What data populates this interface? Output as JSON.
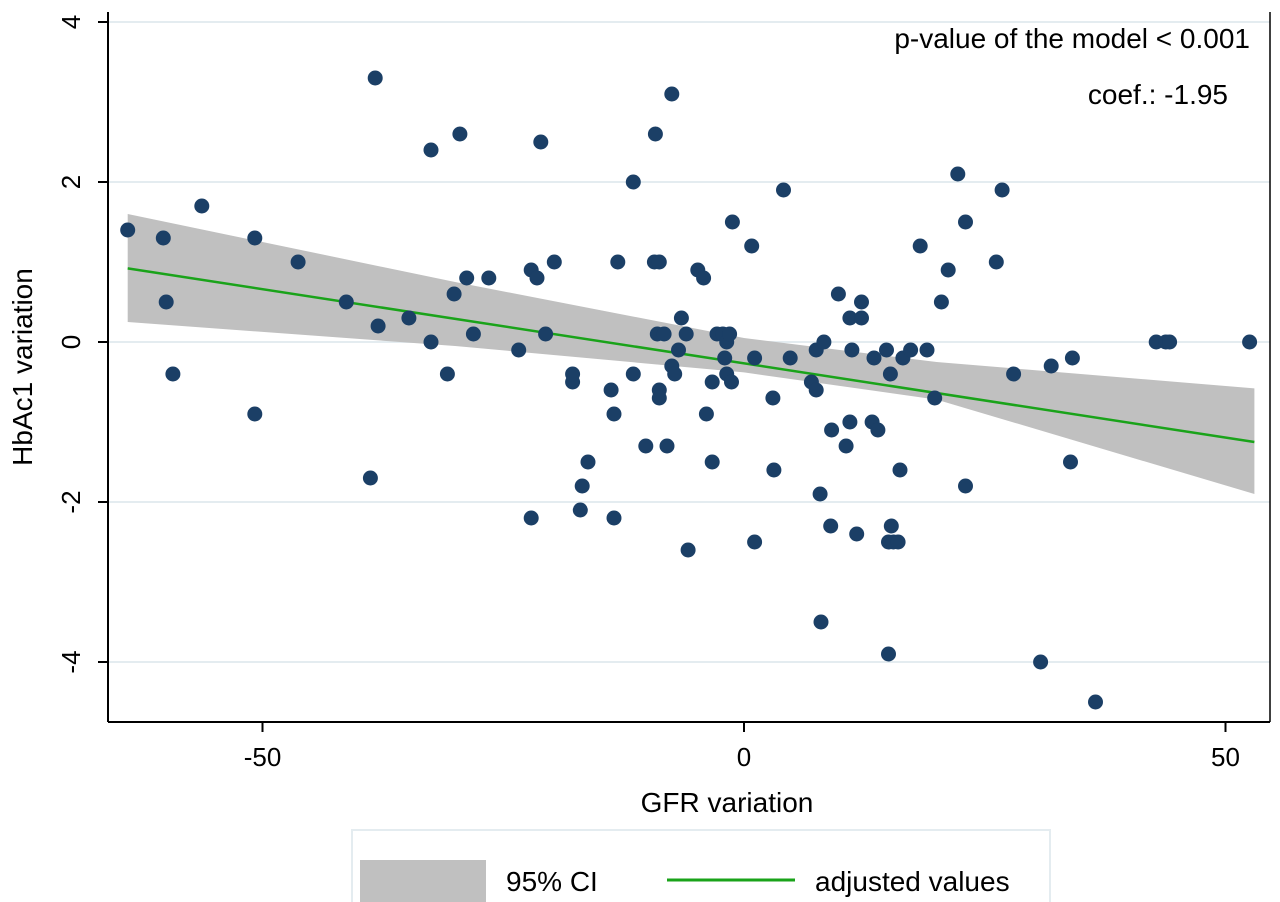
{
  "chart_data": {
    "type": "scatter",
    "title": "",
    "xlabel": "GFR variation",
    "ylabel": "HbAc1 variation",
    "xlim": [
      -66,
      55
    ],
    "ylim": [
      -4.8,
      4.2
    ],
    "x_ticks": [
      -50,
      0,
      50
    ],
    "x_tick_labels": [
      "-50",
      "0",
      "50"
    ],
    "y_ticks": [
      -4,
      -2,
      0,
      2,
      4
    ],
    "y_tick_labels": [
      "-4",
      "-2",
      "0",
      "2",
      "4"
    ],
    "grid": true,
    "annotations": [
      "p-value of the model < 0.001",
      "coef.: -1.95"
    ],
    "legend_position": "bottom",
    "legend": [
      "95% CI",
      "adjusted values"
    ],
    "colors": {
      "points": "#1b3f66",
      "fit": "#1aa31a",
      "ci": "#c0c0c0",
      "grid": "#e4ecf0"
    },
    "fit_line": {
      "x": [
        -64,
        53
      ],
      "y": [
        0.92,
        -1.25
      ]
    },
    "ci_band": {
      "x": [
        -64,
        -30,
        0,
        20,
        53
      ],
      "lower": [
        0.25,
        -0.05,
        -0.38,
        -0.72,
        -1.9
      ],
      "upper": [
        1.6,
        0.75,
        0.05,
        -0.25,
        -0.58
      ]
    },
    "points": [
      {
        "x": -64,
        "y": 1.4
      },
      {
        "x": -60.3,
        "y": 1.3
      },
      {
        "x": -60,
        "y": 0.5
      },
      {
        "x": -59.3,
        "y": -0.4
      },
      {
        "x": -56.3,
        "y": 1.7
      },
      {
        "x": -50.8,
        "y": 1.3
      },
      {
        "x": -50.8,
        "y": -0.9
      },
      {
        "x": -46.3,
        "y": 1.0
      },
      {
        "x": -41.3,
        "y": 0.5
      },
      {
        "x": -38.8,
        "y": -1.7
      },
      {
        "x": -38.3,
        "y": 3.3
      },
      {
        "x": -38,
        "y": 0.2
      },
      {
        "x": -34.8,
        "y": 0.3
      },
      {
        "x": -32.5,
        "y": 2.4
      },
      {
        "x": -32.5,
        "y": 0.0
      },
      {
        "x": -30.8,
        "y": -0.4
      },
      {
        "x": -30.1,
        "y": 0.6
      },
      {
        "x": -29.5,
        "y": 2.6
      },
      {
        "x": -28.8,
        "y": 0.8
      },
      {
        "x": -28.1,
        "y": 0.1
      },
      {
        "x": -26.5,
        "y": 0.8
      },
      {
        "x": -23.4,
        "y": -0.1
      },
      {
        "x": -22.1,
        "y": 0.9
      },
      {
        "x": -22.1,
        "y": -2.2
      },
      {
        "x": -21.5,
        "y": 0.8
      },
      {
        "x": -21.1,
        "y": 2.5
      },
      {
        "x": -20.6,
        "y": 0.1
      },
      {
        "x": -19.7,
        "y": 1.0
      },
      {
        "x": -17.8,
        "y": -0.5
      },
      {
        "x": -17.8,
        "y": -0.4
      },
      {
        "x": -17,
        "y": -2.1
      },
      {
        "x": -16.8,
        "y": -1.8
      },
      {
        "x": -16.2,
        "y": -1.5
      },
      {
        "x": -13.8,
        "y": -0.6
      },
      {
        "x": -13.5,
        "y": -0.9
      },
      {
        "x": -13.5,
        "y": -2.2
      },
      {
        "x": -13.1,
        "y": 1.0
      },
      {
        "x": -11.5,
        "y": 2.0
      },
      {
        "x": -11.5,
        "y": -0.4
      },
      {
        "x": -10.2,
        "y": -1.3
      },
      {
        "x": -9.3,
        "y": 1.0
      },
      {
        "x": -9.2,
        "y": 2.6
      },
      {
        "x": -9.0,
        "y": 0.1
      },
      {
        "x": -8.8,
        "y": 1.0
      },
      {
        "x": -8.8,
        "y": -0.6
      },
      {
        "x": -8.8,
        "y": -0.7
      },
      {
        "x": -8.3,
        "y": 0.1
      },
      {
        "x": -8.0,
        "y": -1.3
      },
      {
        "x": -7.5,
        "y": 3.1
      },
      {
        "x": -7.5,
        "y": -0.3
      },
      {
        "x": -7.2,
        "y": -0.4
      },
      {
        "x": -6.8,
        "y": -0.1
      },
      {
        "x": -6.5,
        "y": 0.3
      },
      {
        "x": -6.0,
        "y": 0.1
      },
      {
        "x": -5.8,
        "y": -2.6
      },
      {
        "x": -4.8,
        "y": 0.9
      },
      {
        "x": -4.2,
        "y": 0.8
      },
      {
        "x": -3.9,
        "y": -0.9
      },
      {
        "x": -3.3,
        "y": -1.5
      },
      {
        "x": -3.3,
        "y": -0.5
      },
      {
        "x": -2.8,
        "y": 0.1
      },
      {
        "x": -2.2,
        "y": 0.1
      },
      {
        "x": -2.0,
        "y": -0.2
      },
      {
        "x": -1.8,
        "y": 0.0
      },
      {
        "x": -1.8,
        "y": -0.4
      },
      {
        "x": -1.5,
        "y": 0.1
      },
      {
        "x": -1.3,
        "y": -0.5
      },
      {
        "x": -1.2,
        "y": 1.5
      },
      {
        "x": 0.8,
        "y": 1.2
      },
      {
        "x": 1.1,
        "y": -0.2
      },
      {
        "x": 1.1,
        "y": -2.5
      },
      {
        "x": 3.0,
        "y": -0.7
      },
      {
        "x": 3.1,
        "y": -1.6
      },
      {
        "x": 4.1,
        "y": 1.9
      },
      {
        "x": 4.8,
        "y": -0.2
      },
      {
        "x": 7.0,
        "y": -0.5
      },
      {
        "x": 7.5,
        "y": -0.6
      },
      {
        "x": 7.5,
        "y": -0.1
      },
      {
        "x": 7.9,
        "y": -1.9
      },
      {
        "x": 8.0,
        "y": -3.5
      },
      {
        "x": 8.3,
        "y": 0.0
      },
      {
        "x": 9.0,
        "y": -2.3
      },
      {
        "x": 9.1,
        "y": -1.1
      },
      {
        "x": 9.8,
        "y": 0.6
      },
      {
        "x": 10.6,
        "y": -1.3
      },
      {
        "x": 11.0,
        "y": 0.3
      },
      {
        "x": 11.0,
        "y": -1.0
      },
      {
        "x": 11.2,
        "y": -0.1
      },
      {
        "x": 11.7,
        "y": -2.4
      },
      {
        "x": 12.2,
        "y": 0.3
      },
      {
        "x": 12.2,
        "y": 0.5
      },
      {
        "x": 13.3,
        "y": -1.0
      },
      {
        "x": 13.5,
        "y": -0.2
      },
      {
        "x": 13.9,
        "y": -1.1
      },
      {
        "x": 14.8,
        "y": -0.1
      },
      {
        "x": 15.0,
        "y": -3.9
      },
      {
        "x": 15.0,
        "y": -2.5
      },
      {
        "x": 15.2,
        "y": -0.4
      },
      {
        "x": 15.3,
        "y": -2.3
      },
      {
        "x": 15.5,
        "y": -2.5
      },
      {
        "x": 16.0,
        "y": -2.5
      },
      {
        "x": 16.2,
        "y": -1.6
      },
      {
        "x": 16.5,
        "y": -0.2
      },
      {
        "x": 17.3,
        "y": -0.1
      },
      {
        "x": 18.3,
        "y": 1.2
      },
      {
        "x": 19.0,
        "y": -0.1
      },
      {
        "x": 19.8,
        "y": -0.7
      },
      {
        "x": 20.5,
        "y": 0.5
      },
      {
        "x": 21.2,
        "y": 0.9
      },
      {
        "x": 22.2,
        "y": 2.1
      },
      {
        "x": 23.0,
        "y": 1.5
      },
      {
        "x": 23.0,
        "y": -1.8
      },
      {
        "x": 26.2,
        "y": 1.0
      },
      {
        "x": 26.8,
        "y": 1.9
      },
      {
        "x": 28.0,
        "y": -0.4
      },
      {
        "x": 30.8,
        "y": -4.0
      },
      {
        "x": 31.9,
        "y": -0.3
      },
      {
        "x": 33.9,
        "y": -1.5
      },
      {
        "x": 34.1,
        "y": -0.2
      },
      {
        "x": 36.5,
        "y": -4.5
      },
      {
        "x": 42.8,
        "y": 0.0
      },
      {
        "x": 43.8,
        "y": 0.0
      },
      {
        "x": 44.2,
        "y": 0.0
      },
      {
        "x": 52.5,
        "y": 0.0
      }
    ]
  }
}
